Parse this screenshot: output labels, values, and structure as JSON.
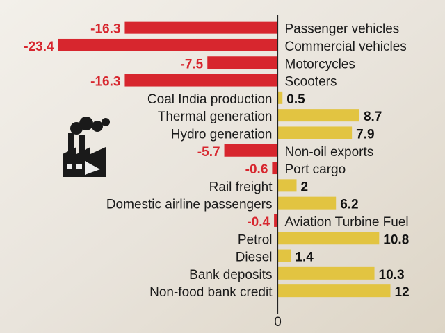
{
  "chart_data": {
    "type": "bar",
    "orientation": "horizontal",
    "categories": [
      "Passenger vehicles",
      "Commercial vehicles",
      "Motorcycles",
      "Scooters",
      "Coal India production",
      "Thermal generation",
      "Hydro generation",
      "Non-oil exports",
      "Port cargo",
      "Rail freight",
      "Domestic airline passengers",
      "Aviation Turbine Fuel",
      "Petrol",
      "Diesel",
      "Bank deposits",
      "Non-food bank credit"
    ],
    "values": [
      -16.3,
      -23.4,
      -7.5,
      -16.3,
      0.5,
      8.7,
      7.9,
      -5.7,
      -0.6,
      2,
      6.2,
      -0.4,
      10.8,
      1.4,
      10.3,
      12
    ],
    "negative_color": "#d7262e",
    "positive_color": "#e2c441",
    "xlim": [
      -25,
      17
    ],
    "xticks": [
      0
    ]
  }
}
